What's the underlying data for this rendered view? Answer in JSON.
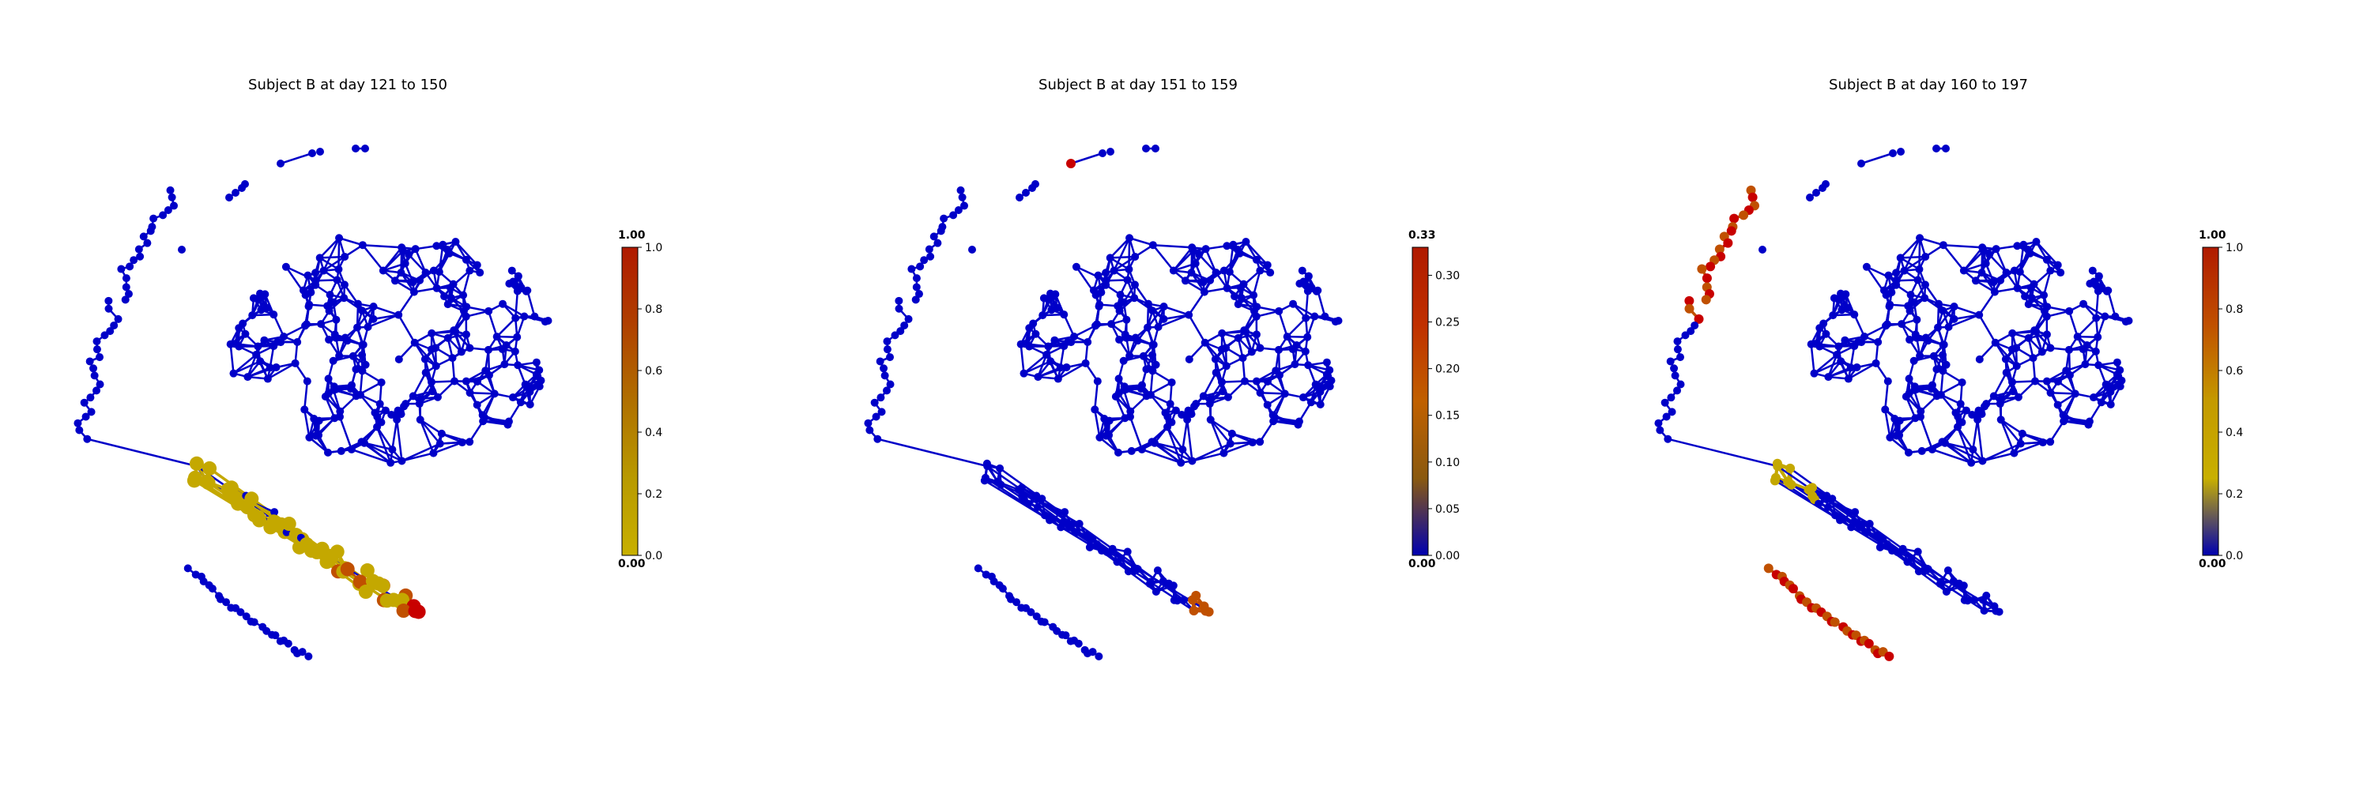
{
  "panels": [
    {
      "title": "Subject B at day 121 to 150",
      "colorbar": {
        "max_label": "1.00",
        "min_label": "0.00",
        "ticks": [
          "0.0",
          "0.2",
          "0.4",
          "0.6",
          "0.8",
          "1.0"
        ],
        "stops": [
          "#c8b000",
          "#b89a00",
          "#b07000",
          "#b04000",
          "#b01a00"
        ]
      }
    },
    {
      "title": "Subject B at day 151 to 159",
      "colorbar": {
        "max_label": "0.33",
        "min_label": "0.00",
        "ticks": [
          "0.00",
          "0.05",
          "0.10",
          "0.15",
          "0.20",
          "0.25",
          "0.30"
        ],
        "stops": [
          "#0000b0",
          "#8a5a10",
          "#c06000",
          "#c03000",
          "#b01a00"
        ]
      }
    },
    {
      "title": "Subject B at day 160 to 197",
      "colorbar": {
        "max_label": "1.00",
        "min_label": "0.00",
        "ticks": [
          "0.0",
          "0.2",
          "0.4",
          "0.6",
          "0.8",
          "1.0"
        ],
        "stops": [
          "#0000b0",
          "#c8b000",
          "#c49a00",
          "#c05000",
          "#b01a00"
        ]
      }
    }
  ],
  "colors": {
    "network": "#0000c8",
    "highlight_yellow": "#c4a800",
    "highlight_orange": "#c05000",
    "highlight_red": "#c80000"
  }
}
